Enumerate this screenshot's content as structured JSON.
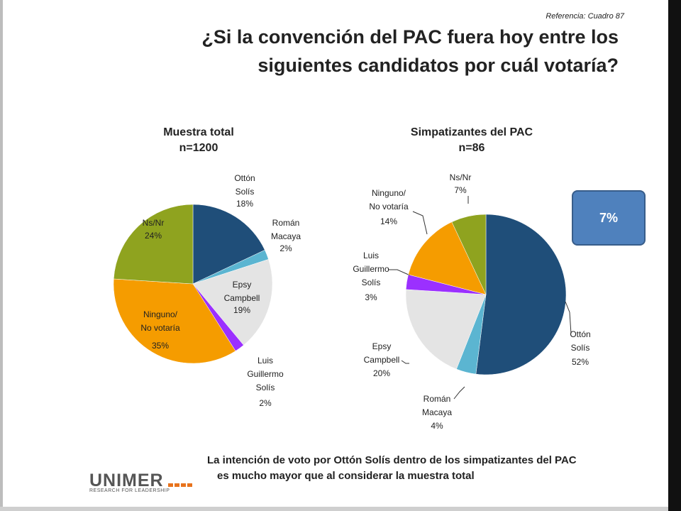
{
  "reference": "Referencia: Cuadro 87",
  "title_line1": "¿Si la convención del PAC fuera hoy entre los",
  "title_line2": "siguientes candidatos por cuál votaría?",
  "chart_data": [
    {
      "type": "pie",
      "title": "Muestra total",
      "subtitle": "n=1200",
      "slices": [
        {
          "label": "Ottón Solís",
          "value": 18,
          "value_label": "18%",
          "color": "#1f4e79"
        },
        {
          "label": "Román Macaya",
          "value": 2,
          "value_label": "2%",
          "color": "#5bb5d1"
        },
        {
          "label": "Epsy Campbell",
          "value": 19,
          "value_label": "19%",
          "color": "#e4e4e4"
        },
        {
          "label": "Luis Guillermo Solís",
          "value": 2,
          "value_label": "2%",
          "color": "#9b30ff"
        },
        {
          "label": "Ninguno/ No votaría",
          "value": 35,
          "value_label": "35%",
          "color": "#f59c00"
        },
        {
          "label": "Ns/Nr",
          "value": 24,
          "value_label": "24%",
          "color": "#8fa31f"
        }
      ]
    },
    {
      "type": "pie",
      "title": "Simpatizantes del PAC",
      "subtitle": "n=86",
      "slices": [
        {
          "label": "Ottón Solís",
          "value": 52,
          "value_label": "52%",
          "color": "#1f4e79"
        },
        {
          "label": "Román Macaya",
          "value": 4,
          "value_label": "4%",
          "color": "#5bb5d1"
        },
        {
          "label": "Epsy Campbell",
          "value": 20,
          "value_label": "20%",
          "color": "#e4e4e4"
        },
        {
          "label": "Luis Guillermo Solís",
          "value": 3,
          "value_label": "3%",
          "color": "#9b30ff"
        },
        {
          "label": "Ninguno/ No votaría",
          "value": 14,
          "value_label": "14%",
          "color": "#f59c00"
        },
        {
          "label": "Ns/Nr",
          "value": 7,
          "value_label": "7%",
          "color": "#8fa31f"
        }
      ]
    }
  ],
  "callout": "7%",
  "footnote_line1": "La intención de voto por Ottón  Solís dentro de los simpatizantes del PAC",
  "footnote_line2": "es mucho mayor que al considerar la muestra total",
  "logo": {
    "name": "UNIMER",
    "tagline": "RESEARCH FOR LEADERSHIP"
  }
}
